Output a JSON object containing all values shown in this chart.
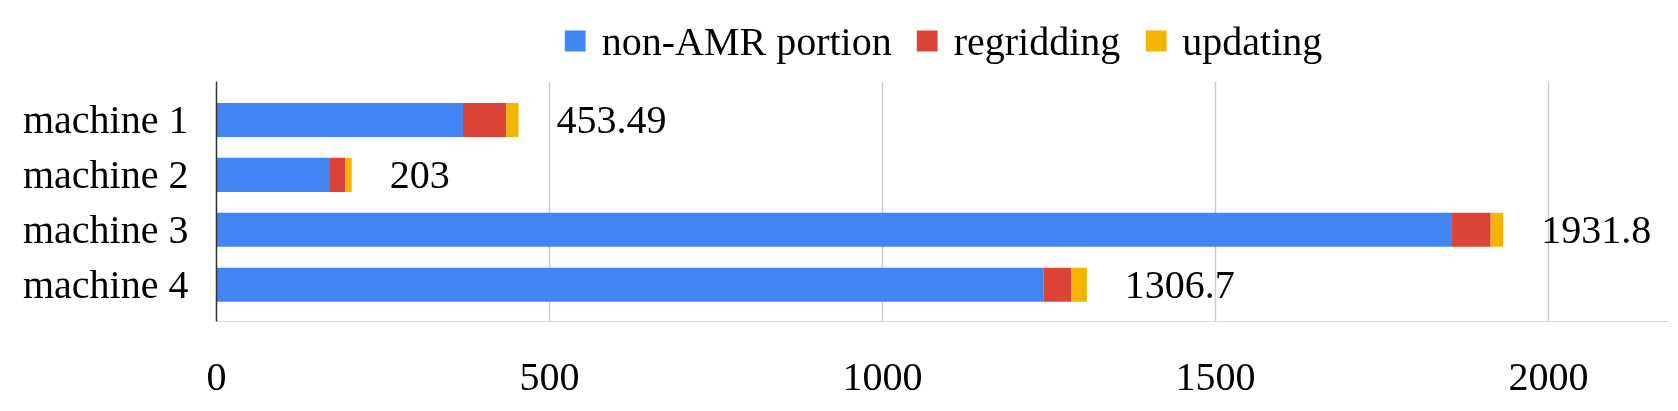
{
  "chart_data": {
    "type": "bar",
    "orientation": "horizontal",
    "stacked": true,
    "categories": [
      "machine 1",
      "machine 2",
      "machine 3",
      "machine 4"
    ],
    "series": [
      {
        "name": "non-AMR portion",
        "color": "#4285f4",
        "values": [
          370,
          169,
          1855,
          1242
        ]
      },
      {
        "name": "regridding",
        "color": "#db4437",
        "values": [
          65,
          24,
          58,
          41
        ]
      },
      {
        "name": "updating",
        "color": "#f4b400",
        "values": [
          18.49,
          10,
          18.8,
          23.7
        ]
      }
    ],
    "totals": [
      "453.49",
      "203",
      "1931.8",
      "1306.7"
    ],
    "xlim": [
      0,
      2180
    ],
    "xticks": [
      0,
      500,
      1000,
      1500,
      2000
    ],
    "grid": "x",
    "legend": "top"
  }
}
